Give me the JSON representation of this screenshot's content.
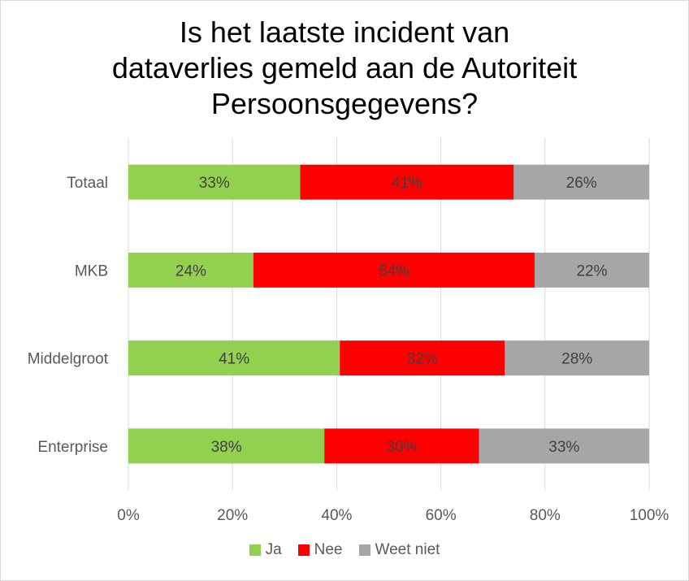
{
  "chart_data": {
    "type": "bar",
    "orientation": "horizontal",
    "stacked": true,
    "title": "Is het laatste incident van dataverlies gemeld aan de Autoriteit Persoonsgegevens?",
    "title_lines": [
      "Is het laatste incident van",
      "dataverlies gemeld aan de Autoriteit",
      "Persoonsgegevens?"
    ],
    "categories": [
      "Totaal",
      "MKB",
      "Middelgroot",
      "Enterprise"
    ],
    "series": [
      {
        "name": "Ja",
        "color": "#92d050",
        "values": [
          33,
          24,
          41,
          38
        ],
        "labels": [
          "33%",
          "24%",
          "41%",
          "38%"
        ]
      },
      {
        "name": "Nee",
        "color": "#ff0000",
        "values": [
          41,
          54,
          32,
          30
        ],
        "labels": [
          "41%",
          "54%",
          "32%",
          "30%"
        ]
      },
      {
        "name": "Weet niet",
        "color": "#a6a6a6",
        "values": [
          26,
          22,
          28,
          33
        ],
        "labels": [
          "26%",
          "22%",
          "28%",
          "33%"
        ]
      }
    ],
    "xlim": [
      0,
      100
    ],
    "x_ticks": [
      "0%",
      "20%",
      "40%",
      "60%",
      "80%",
      "100%"
    ],
    "grid": true,
    "legend_position": "bottom"
  }
}
